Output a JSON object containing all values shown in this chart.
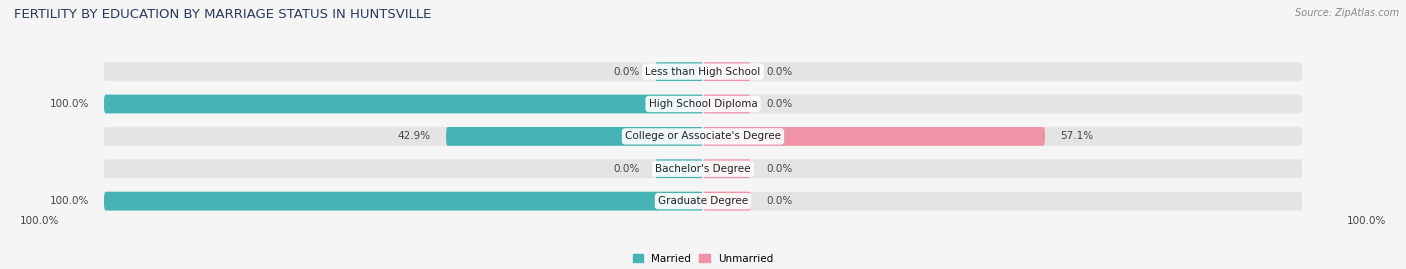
{
  "title": "FERTILITY BY EDUCATION BY MARRIAGE STATUS IN HUNTSVILLE",
  "source": "Source: ZipAtlas.com",
  "categories": [
    "Less than High School",
    "High School Diploma",
    "College or Associate's Degree",
    "Bachelor's Degree",
    "Graduate Degree"
  ],
  "married_values": [
    0.0,
    100.0,
    42.9,
    0.0,
    100.0
  ],
  "unmarried_values": [
    0.0,
    0.0,
    57.1,
    0.0,
    0.0
  ],
  "married_color": "#46b4b4",
  "unmarried_color": "#f093a8",
  "bar_bg_color": "#e4e4e4",
  "background_color": "#f5f5f5",
  "title_color": "#2a3a5c",
  "label_color": "#444444",
  "source_color": "#888888",
  "axis_label_left": "100.0%",
  "axis_label_right": "100.0%",
  "title_fontsize": 9.5,
  "label_fontsize": 7.5,
  "source_fontsize": 7.0,
  "bar_height": 0.58,
  "xlim_min": -115,
  "xlim_max": 115,
  "zero_bar_small": 8
}
